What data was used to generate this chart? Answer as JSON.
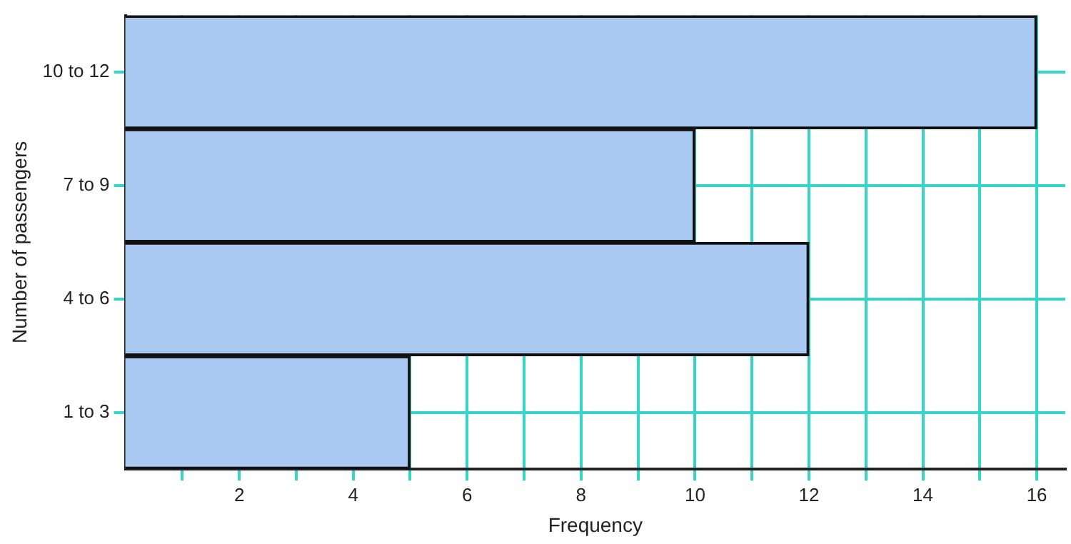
{
  "chart_data": {
    "type": "bar",
    "orientation": "horizontal",
    "xlabel": "Frequency",
    "ylabel": "Number of passengers",
    "categories": [
      "10 to 12",
      "7 to 9",
      "4 to 6",
      "1 to 3"
    ],
    "values": [
      16,
      10,
      12,
      5
    ],
    "color": "#a9c9f2",
    "xlim": [
      0,
      16.5
    ],
    "xticks": [
      {
        "value": 1,
        "label": null
      },
      2,
      {
        "value": 3,
        "label": null
      },
      4,
      {
        "value": 5,
        "label": null
      },
      6,
      {
        "value": 7,
        "label": null
      },
      8,
      {
        "value": 9,
        "label": null
      },
      10,
      {
        "value": 11,
        "label": null
      },
      12,
      {
        "value": 13,
        "label": null
      },
      14,
      {
        "value": 15,
        "label": null
      },
      16
    ],
    "grid": true,
    "legend": false
  }
}
